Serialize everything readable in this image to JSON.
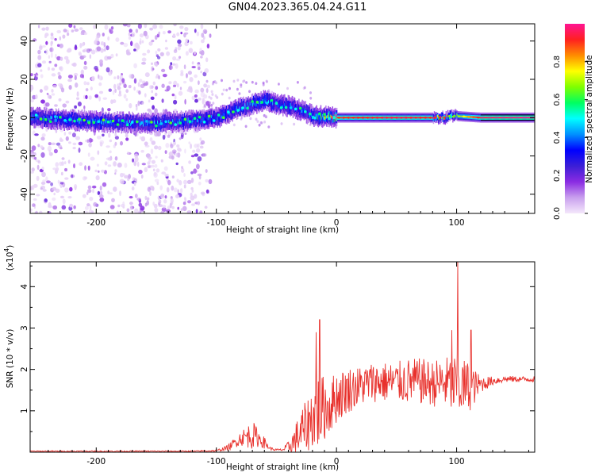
{
  "title": "GN04.2023.365.04.24.G11",
  "chart_data": [
    {
      "type": "heatmap",
      "xlabel": "Height of straight line (km)",
      "ylabel": "Frequency (Hz)",
      "xlim": [
        -255,
        165
      ],
      "ylim": [
        -50,
        49
      ],
      "x_ticks": [
        -200,
        -100,
        0,
        100
      ],
      "y_ticks": [
        -40,
        -20,
        0,
        20,
        40
      ],
      "colorbar": {
        "label": "Normalized spectral amplitude",
        "range": [
          0,
          1
        ],
        "ticks": [
          0.0,
          0.2,
          0.4,
          0.6,
          0.8
        ],
        "colormap": [
          "#f4e8fb",
          "#c9a0ee",
          "#8a2be2",
          "#3b1fd6",
          "#0000ff",
          "#0090ff",
          "#00ffff",
          "#00ff60",
          "#7fff00",
          "#ffff00",
          "#ff8c00",
          "#ff2020",
          "#ff1493"
        ]
      },
      "ridge": {
        "x": [
          -255,
          -200,
          -150,
          -110,
          -100,
          -80,
          -60,
          -50,
          -40,
          -30,
          -20,
          0,
          50,
          90,
          95,
          120,
          165
        ],
        "y": [
          0,
          -2,
          -3,
          -1,
          0,
          5,
          9,
          7,
          6,
          4,
          1,
          0,
          0,
          0,
          1,
          0,
          0
        ],
        "amplitude": [
          0.35,
          0.4,
          0.4,
          0.35,
          0.35,
          0.4,
          0.4,
          0.35,
          0.35,
          0.35,
          0.4,
          0.9,
          0.95,
          0.9,
          0.6,
          0.95,
          1.0
        ]
      },
      "noise_region_x": [
        -255,
        -105
      ]
    },
    {
      "type": "line",
      "xlabel": "Height of straight line (km)",
      "ylabel": "SNR (10 * v/v)",
      "yscale_label": "(x10",
      "yscale_exponent": "4",
      "yscale_suffix": ")",
      "xlim": [
        -255,
        165
      ],
      "ylim": [
        0,
        4.6
      ],
      "x_ticks": [
        -200,
        -100,
        0,
        100
      ],
      "y_ticks": [
        1,
        2,
        3,
        4
      ],
      "color": "#e8312c",
      "envelope": {
        "x": [
          -255,
          -120,
          -100,
          -90,
          -80,
          -70,
          -65,
          -60,
          -55,
          -50,
          -45,
          -40,
          -35,
          -30,
          -25,
          -20,
          -15,
          -10,
          -5,
          0,
          10,
          20,
          30,
          40,
          50,
          60,
          70,
          80,
          90,
          95,
          100,
          105,
          110,
          115,
          120,
          130,
          140,
          150,
          165
        ],
        "base": [
          0.02,
          0.02,
          0.03,
          0.1,
          0.3,
          0.35,
          0.3,
          0.2,
          0.08,
          0.05,
          0.05,
          0.1,
          0.2,
          0.35,
          0.5,
          0.7,
          0.8,
          0.9,
          1.0,
          1.2,
          1.4,
          1.5,
          1.6,
          1.6,
          1.6,
          1.6,
          1.6,
          1.55,
          1.55,
          1.5,
          1.4,
          1.45,
          1.45,
          1.5,
          1.6,
          1.7,
          1.75,
          1.75,
          1.75
        ],
        "spread": [
          0.02,
          0.02,
          0.03,
          0.1,
          0.25,
          0.5,
          0.3,
          0.2,
          0.05,
          0.04,
          0.04,
          0.2,
          0.5,
          0.8,
          0.9,
          1.1,
          1.4,
          1.1,
          1.0,
          0.9,
          0.8,
          0.7,
          0.7,
          0.7,
          0.7,
          0.8,
          0.8,
          0.8,
          0.9,
          1.0,
          1.2,
          1.0,
          0.9,
          0.6,
          0.3,
          0.15,
          0.12,
          0.1,
          0.1
        ]
      },
      "peaks": [
        {
          "x": 101,
          "y": 4.6
        },
        {
          "x": -14,
          "y": 3.2
        },
        {
          "x": -17,
          "y": 2.9
        },
        {
          "x": 96,
          "y": 2.95
        },
        {
          "x": 112,
          "y": 2.95
        }
      ]
    }
  ]
}
